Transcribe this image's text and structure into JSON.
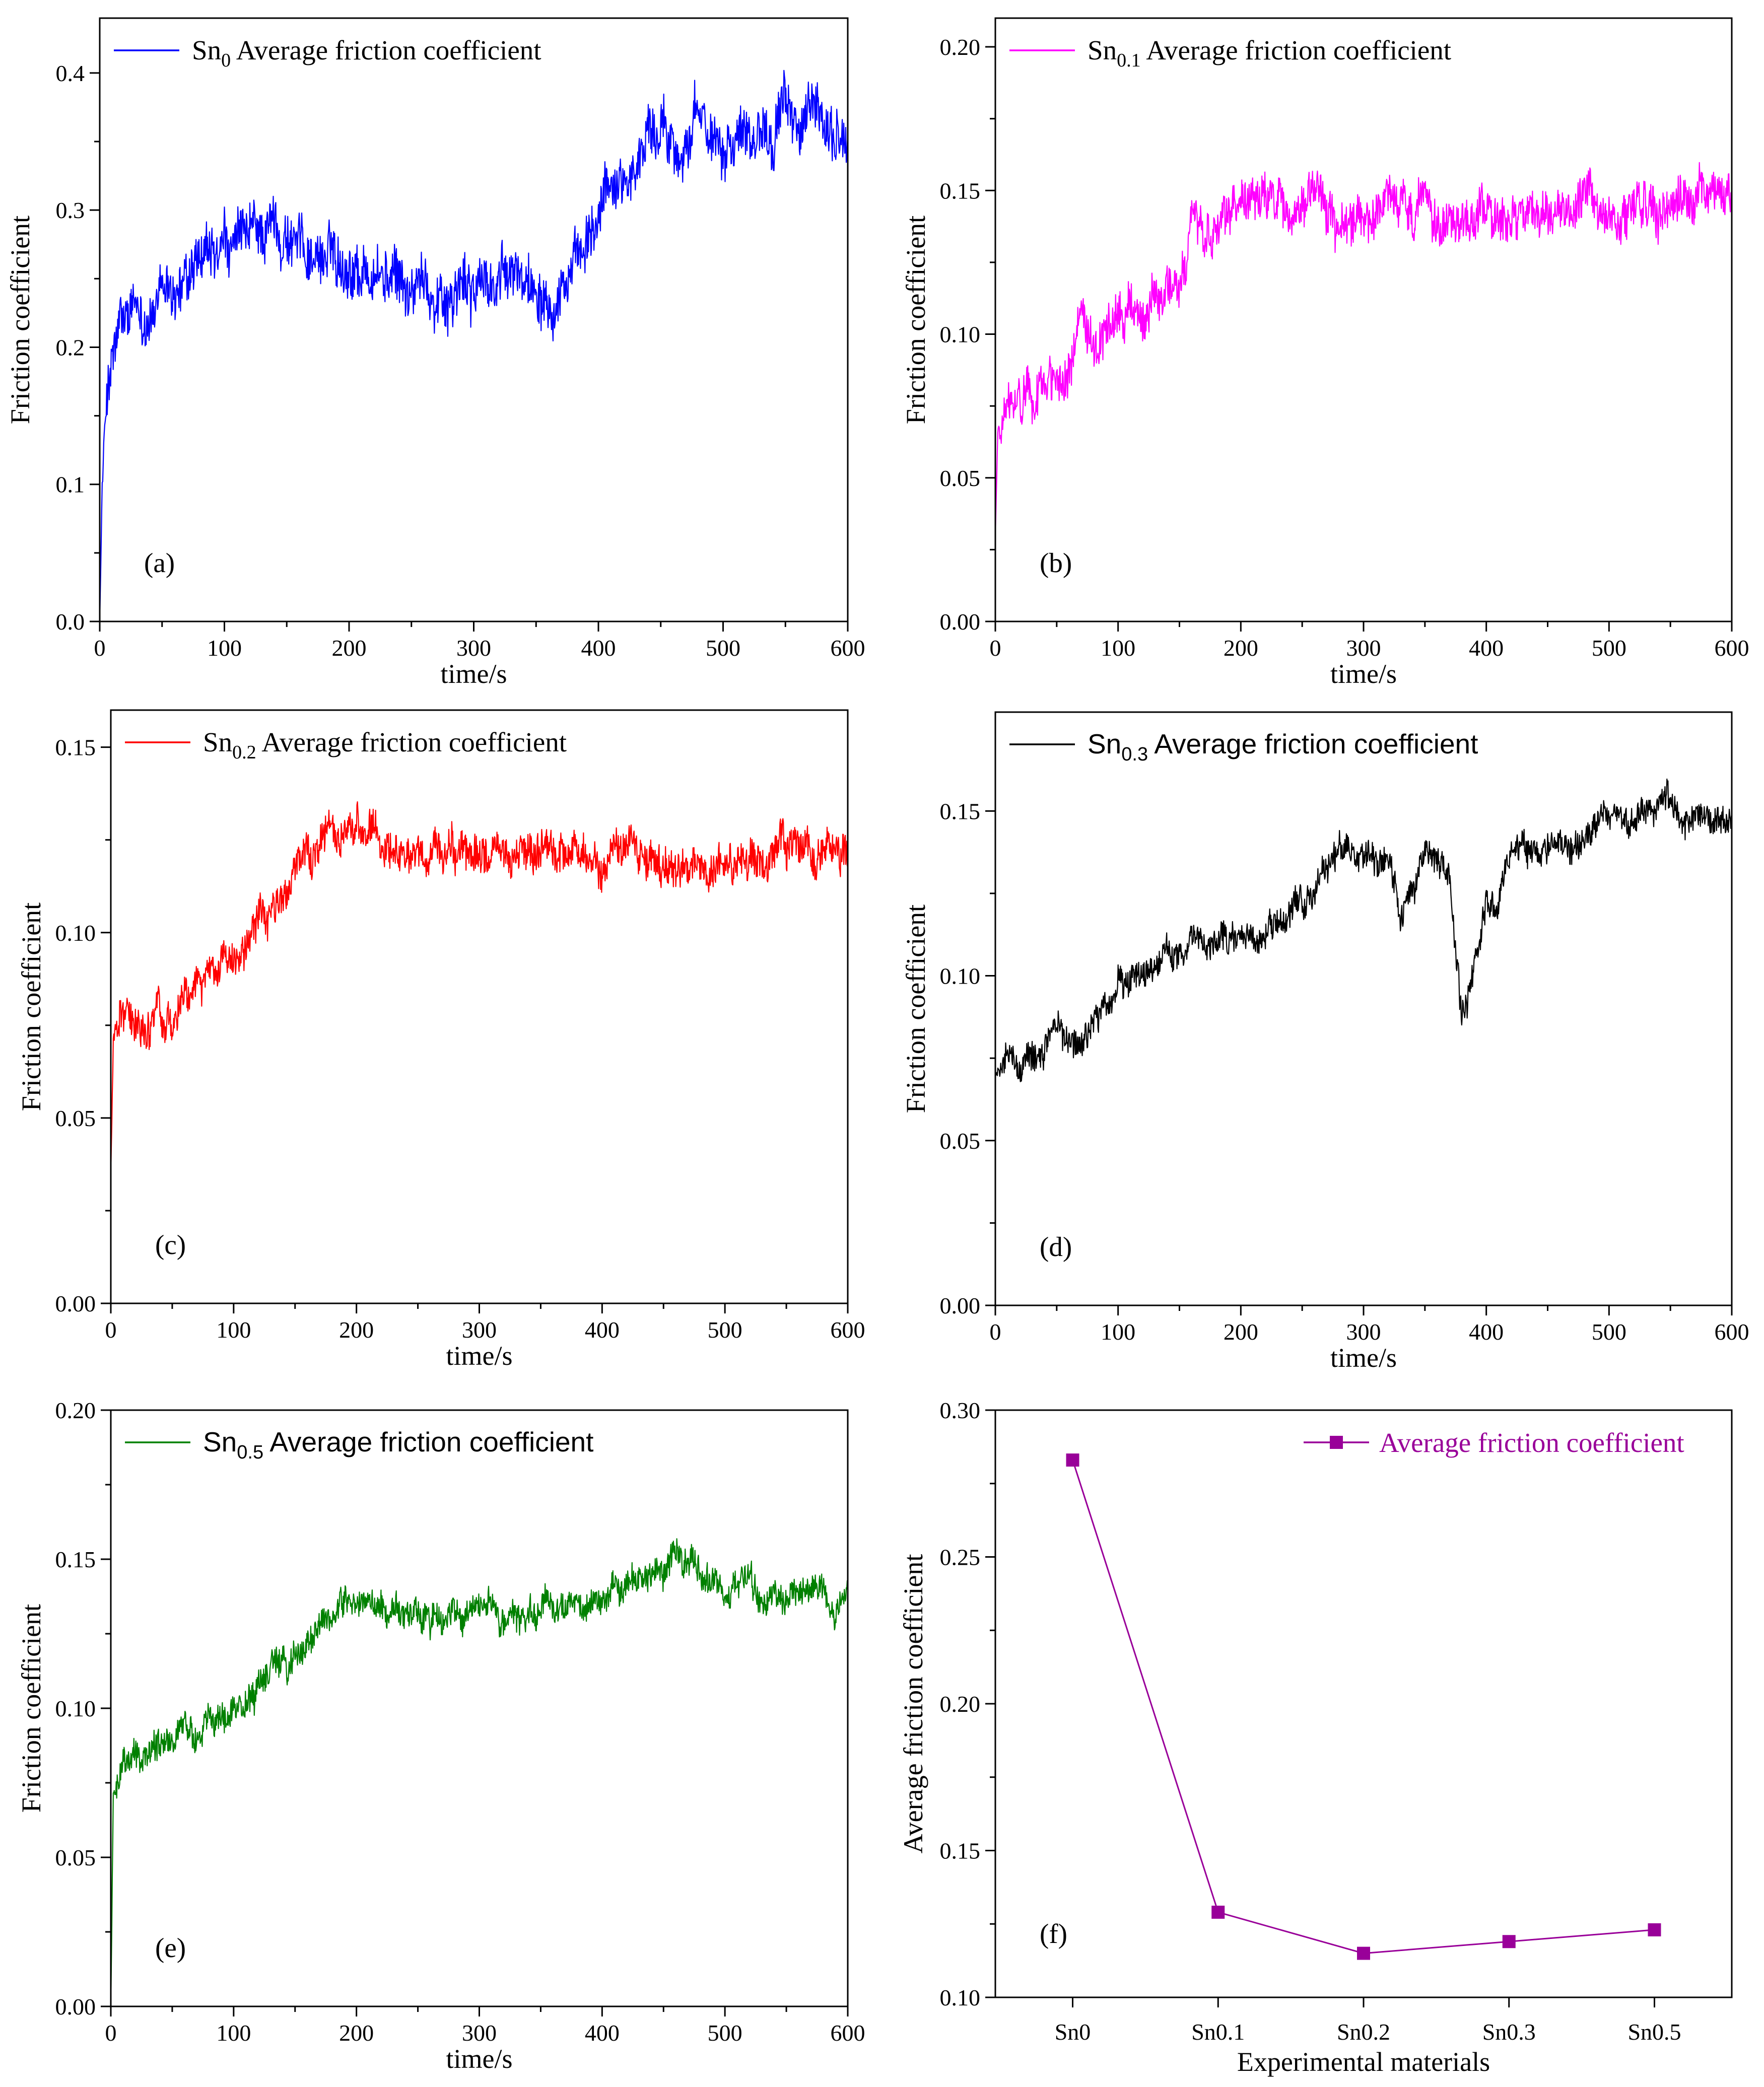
{
  "figure": {
    "panels_order": [
      "a",
      "b",
      "c",
      "d",
      "e",
      "f"
    ]
  },
  "chart_data": [
    {
      "id": "a",
      "type": "line",
      "panel_label": "(a)",
      "color": "#0000FF",
      "legend": {
        "main": "Sn",
        "sub": "0",
        "rest": " Average friction coefficient",
        "sans": false
      },
      "xlabel": "time/s",
      "ylabel": "Friction coefficient",
      "xlim": [
        0,
        600
      ],
      "ylim": [
        0,
        0.44
      ],
      "xticks": [
        0,
        100,
        200,
        300,
        400,
        500,
        600
      ],
      "yticks": [
        "0.0",
        "0.1",
        "0.2",
        "0.3",
        "0.4"
      ],
      "noise": 0.03,
      "series_profile": {
        "x": [
          0,
          2,
          6,
          15,
          40,
          80,
          110,
          140,
          170,
          200,
          250,
          300,
          350,
          390,
          410,
          420,
          430,
          440,
          460,
          500,
          550,
          600
        ],
        "y": [
          0,
          0.1,
          0.17,
          0.21,
          0.225,
          0.25,
          0.27,
          0.29,
          0.27,
          0.265,
          0.24,
          0.245,
          0.25,
          0.26,
          0.32,
          0.33,
          0.33,
          0.36,
          0.355,
          0.36,
          0.37,
          0.35
        ]
      }
    },
    {
      "id": "b",
      "type": "line",
      "panel_label": "(b)",
      "color": "#FF00FF",
      "legend": {
        "main": "Sn",
        "sub": "0.1",
        "rest": " Average friction coefficient",
        "sans": false
      },
      "xlabel": "time/s",
      "ylabel": "Friction coefficient",
      "xlim": [
        0,
        600
      ],
      "ylim": [
        0,
        0.21
      ],
      "xticks": [
        0,
        100,
        200,
        300,
        400,
        500,
        600
      ],
      "yticks": [
        "0.00",
        "0.05",
        "0.10",
        "0.15",
        "0.20"
      ],
      "noise": 0.012,
      "series_profile": {
        "x": [
          0,
          2,
          8,
          30,
          60,
          100,
          150,
          160,
          200,
          250,
          300,
          400,
          500,
          600
        ],
        "y": [
          0.03,
          0.065,
          0.075,
          0.078,
          0.092,
          0.105,
          0.115,
          0.138,
          0.14,
          0.145,
          0.142,
          0.14,
          0.142,
          0.148
        ]
      }
    },
    {
      "id": "c",
      "type": "line",
      "panel_label": "(c)",
      "color": "#FF0000",
      "legend": {
        "main": "Sn",
        "sub": "0.2",
        "rest": " Average friction coefficient",
        "sans": false
      },
      "xlabel": "time/s",
      "ylabel": "Friction coefficient",
      "xlim": [
        0,
        600
      ],
      "ylim": [
        0,
        0.16
      ],
      "xticks": [
        0,
        100,
        200,
        300,
        400,
        500,
        600
      ],
      "yticks": [
        "0.00",
        "0.05",
        "0.10",
        "0.15"
      ],
      "noise": 0.008,
      "series_profile": {
        "x": [
          0,
          2,
          10,
          30,
          60,
          100,
          150,
          190,
          250,
          300,
          400,
          500,
          600
        ],
        "y": [
          0.035,
          0.07,
          0.078,
          0.075,
          0.082,
          0.095,
          0.115,
          0.128,
          0.118,
          0.122,
          0.12,
          0.12,
          0.122
        ]
      }
    },
    {
      "id": "d",
      "type": "line",
      "panel_label": "(d)",
      "color": "#000000",
      "legend": {
        "main": "Sn",
        "sub": "0.3",
        "rest": " Average friction coefficient",
        "sans": true
      },
      "xlabel": "time/s",
      "ylabel": "Friction coefficient",
      "xlim": [
        0,
        600
      ],
      "ylim": [
        0,
        0.18
      ],
      "xticks": [
        0,
        100,
        200,
        300,
        400,
        500,
        600
      ],
      "yticks": [
        "0.00",
        "0.05",
        "0.10",
        "0.15"
      ],
      "noise": 0.007,
      "series_profile": {
        "x": [
          0,
          20,
          50,
          75,
          100,
          150,
          200,
          250,
          280,
          320,
          330,
          350,
          370,
          380,
          400,
          430,
          470,
          500,
          550,
          600
        ],
        "y": [
          0.07,
          0.075,
          0.082,
          0.08,
          0.098,
          0.108,
          0.11,
          0.12,
          0.138,
          0.135,
          0.12,
          0.14,
          0.13,
          0.085,
          0.12,
          0.14,
          0.14,
          0.148,
          0.15,
          0.145
        ]
      }
    },
    {
      "id": "e",
      "type": "line",
      "panel_label": "(e)",
      "color": "#008000",
      "legend": {
        "main": "Sn",
        "sub": "0.5",
        "rest": " Average friction coefficient",
        "sans": true
      },
      "xlabel": "time/s",
      "ylabel": "Friction coefficient",
      "xlim": [
        0,
        600
      ],
      "ylim": [
        0,
        0.2
      ],
      "xticks": [
        0,
        100,
        200,
        300,
        400,
        500,
        600
      ],
      "yticks": [
        "0.00",
        "0.05",
        "0.10",
        "0.15",
        "0.20"
      ],
      "noise": 0.008,
      "series_profile": {
        "x": [
          0,
          2,
          10,
          50,
          100,
          150,
          190,
          250,
          300,
          400,
          460,
          500,
          550,
          600
        ],
        "y": [
          0,
          0.07,
          0.08,
          0.088,
          0.1,
          0.118,
          0.135,
          0.128,
          0.132,
          0.135,
          0.15,
          0.14,
          0.138,
          0.14
        ]
      }
    },
    {
      "id": "f",
      "type": "line",
      "panel_label": "(f)",
      "color": "#990099",
      "legend": {
        "main": "Average friction coefficient",
        "sub": "",
        "rest": "",
        "sans": false
      },
      "xlabel": "Experimental materials",
      "ylabel": "Average friction coefficient",
      "categories": [
        "Sn0",
        "Sn0.1",
        "Sn0.2",
        "Sn0.3",
        "Sn0.5"
      ],
      "values": [
        0.283,
        0.129,
        0.115,
        0.119,
        0.123
      ],
      "ylim": [
        0.1,
        0.3
      ],
      "yticks": [
        "0.10",
        "0.15",
        "0.20",
        "0.25",
        "0.30"
      ]
    }
  ]
}
